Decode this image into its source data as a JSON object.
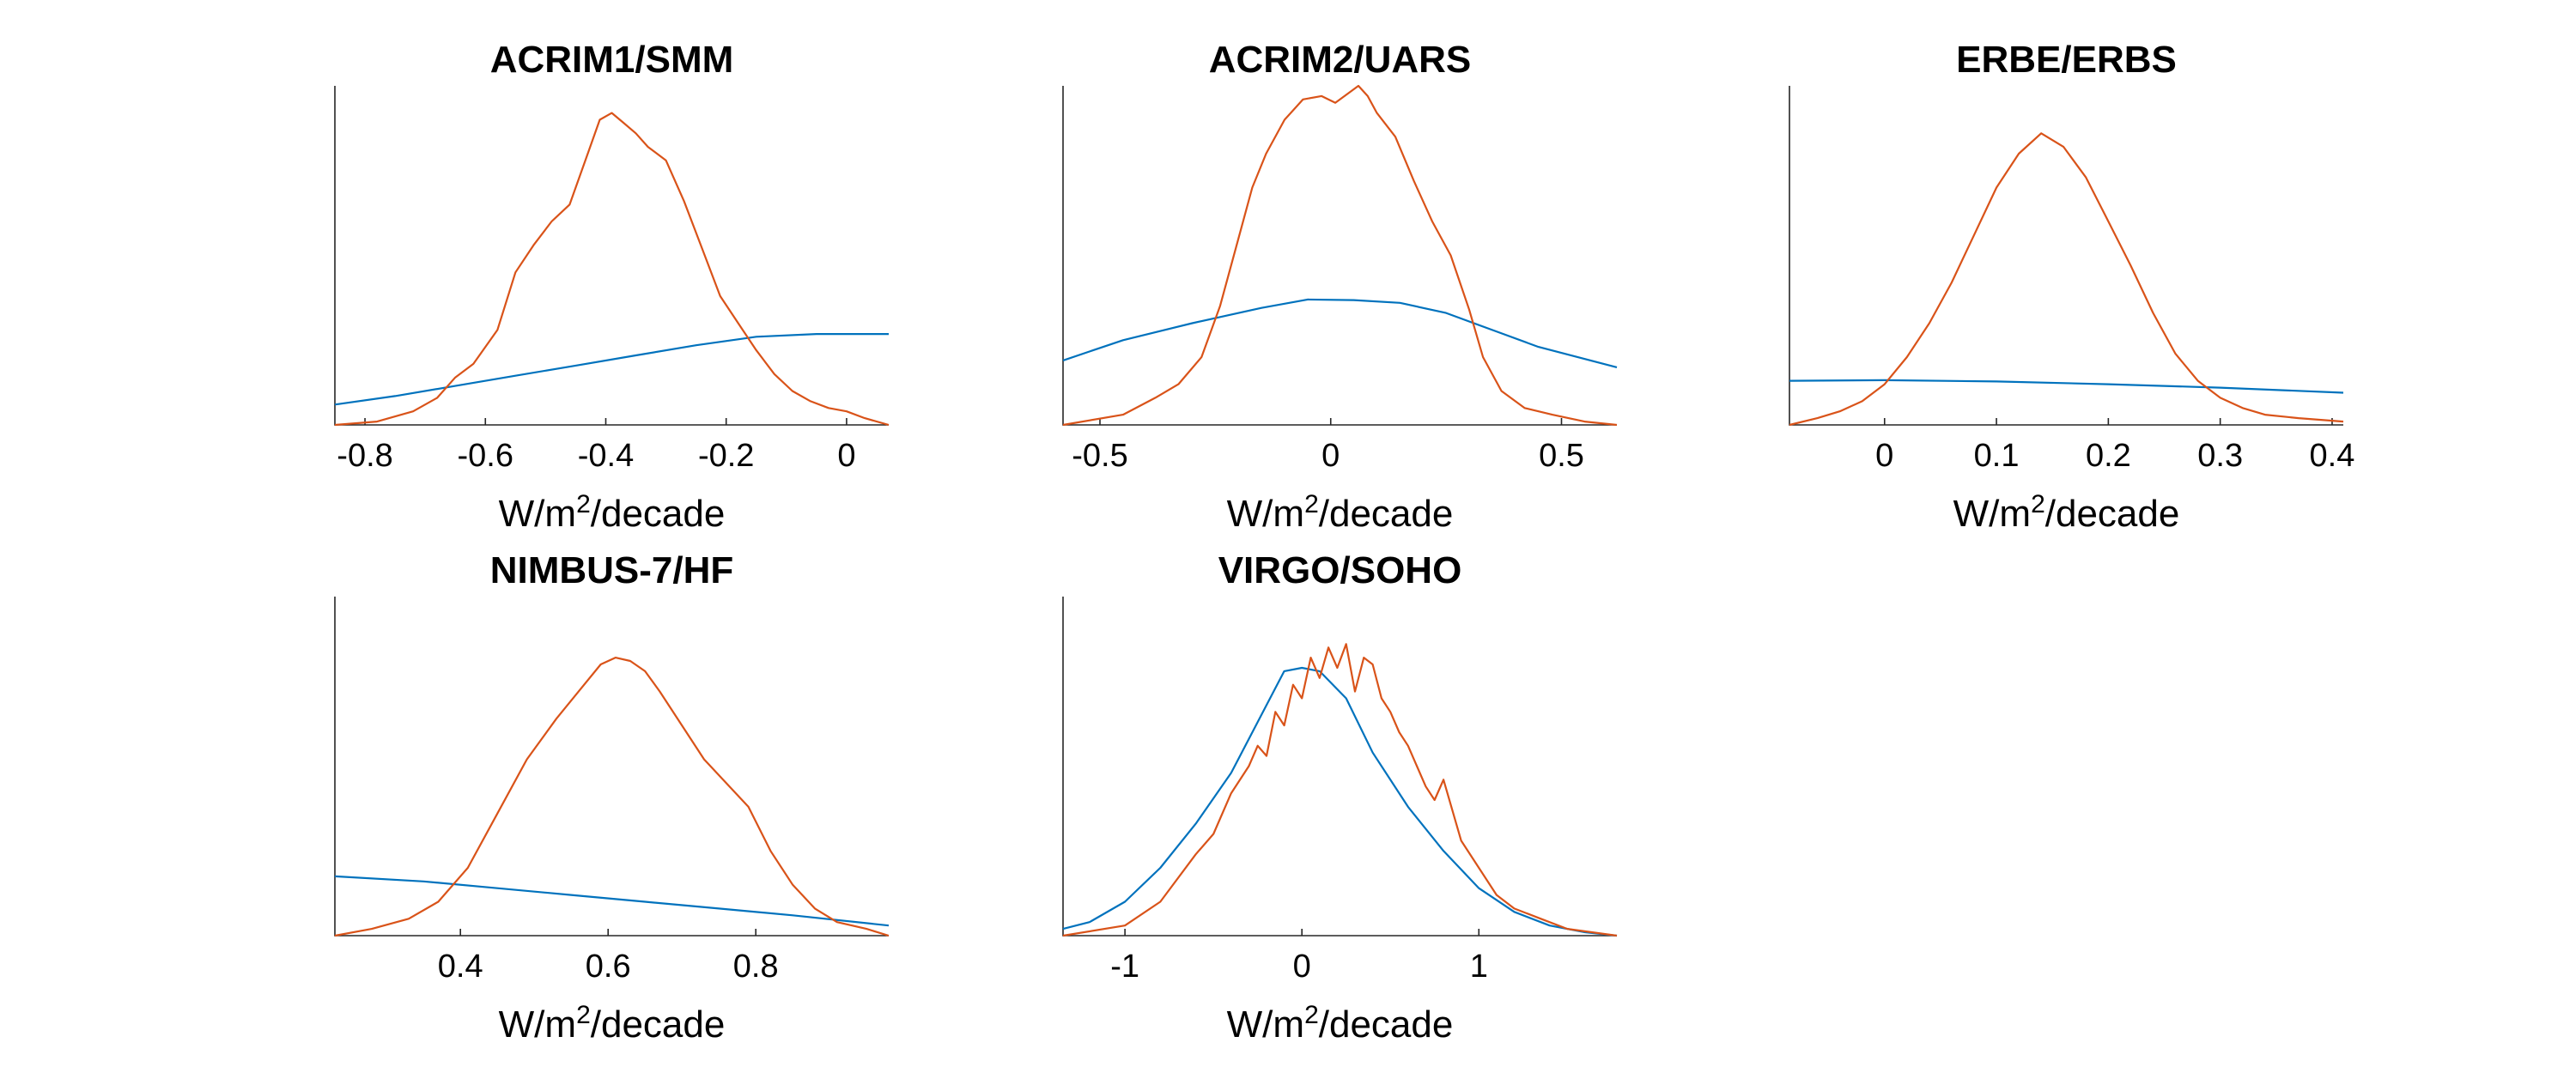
{
  "colors": {
    "prior": "#0072BD",
    "posterior": "#D95319",
    "axis": "#262626"
  },
  "chart_data": [
    {
      "type": "line",
      "title": "ACRIM1/SMM",
      "xlabel": {
        "base": "W/m",
        "sup": "2",
        "tail": "/decade"
      },
      "xlim": [
        -0.85,
        0.07
      ],
      "ylim": [
        0,
        1
      ],
      "xticks": [
        -0.8,
        -0.6,
        -0.4,
        -0.2,
        0
      ],
      "xtick_labels": [
        "-0.8",
        "-0.6",
        "-0.4",
        "-0.2",
        "0"
      ],
      "series": [
        {
          "role": "prior",
          "x": [
            -0.85,
            -0.75,
            -0.65,
            -0.55,
            -0.45,
            -0.35,
            -0.25,
            -0.15,
            -0.05,
            0.07
          ],
          "y": [
            0.06,
            0.085,
            0.115,
            0.145,
            0.175,
            0.205,
            0.235,
            0.26,
            0.268,
            0.268
          ]
        },
        {
          "role": "posterior",
          "x": [
            -0.85,
            -0.78,
            -0.72,
            -0.68,
            -0.65,
            -0.62,
            -0.58,
            -0.55,
            -0.52,
            -0.49,
            -0.46,
            -0.43,
            -0.41,
            -0.39,
            -0.37,
            -0.35,
            -0.33,
            -0.3,
            -0.27,
            -0.24,
            -0.21,
            -0.18,
            -0.15,
            -0.12,
            -0.09,
            -0.06,
            -0.03,
            0.0,
            0.03,
            0.07
          ],
          "y": [
            0.0,
            0.01,
            0.04,
            0.08,
            0.14,
            0.18,
            0.28,
            0.45,
            0.53,
            0.6,
            0.65,
            0.8,
            0.9,
            0.92,
            0.89,
            0.86,
            0.82,
            0.78,
            0.66,
            0.52,
            0.38,
            0.3,
            0.22,
            0.15,
            0.1,
            0.07,
            0.05,
            0.04,
            0.02,
            0.0
          ]
        }
      ]
    },
    {
      "type": "line",
      "title": "ACRIM2/UARS",
      "xlabel": {
        "base": "W/m",
        "sup": "2",
        "tail": "/decade"
      },
      "xlim": [
        -0.58,
        0.62
      ],
      "ylim": [
        0,
        1
      ],
      "xticks": [
        -0.5,
        0,
        0.5
      ],
      "xtick_labels": [
        "-0.5",
        "0",
        "0.5"
      ],
      "series": [
        {
          "role": "prior",
          "x": [
            -0.58,
            -0.45,
            -0.3,
            -0.15,
            -0.05,
            0.05,
            0.15,
            0.25,
            0.35,
            0.45,
            0.62
          ],
          "y": [
            0.19,
            0.25,
            0.3,
            0.345,
            0.37,
            0.368,
            0.36,
            0.33,
            0.28,
            0.23,
            0.17
          ]
        },
        {
          "role": "posterior",
          "x": [
            -0.58,
            -0.45,
            -0.38,
            -0.33,
            -0.28,
            -0.24,
            -0.2,
            -0.17,
            -0.14,
            -0.1,
            -0.06,
            -0.02,
            0.01,
            0.04,
            0.06,
            0.08,
            0.1,
            0.14,
            0.18,
            0.22,
            0.26,
            0.3,
            0.33,
            0.37,
            0.42,
            0.48,
            0.55,
            0.62
          ],
          "y": [
            0.0,
            0.03,
            0.08,
            0.12,
            0.2,
            0.35,
            0.55,
            0.7,
            0.8,
            0.9,
            0.96,
            0.97,
            0.95,
            0.98,
            1.0,
            0.97,
            0.92,
            0.85,
            0.72,
            0.6,
            0.5,
            0.34,
            0.2,
            0.1,
            0.05,
            0.03,
            0.01,
            0.0
          ]
        }
      ]
    },
    {
      "type": "line",
      "title": "ERBE/ERBS",
      "xlabel": {
        "base": "W/m",
        "sup": "2",
        "tail": "/decade"
      },
      "xlim": [
        -0.085,
        0.41
      ],
      "ylim": [
        0,
        1
      ],
      "xticks": [
        0,
        0.1,
        0.2,
        0.3,
        0.4
      ],
      "xtick_labels": [
        "0",
        "0.1",
        "0.2",
        "0.3",
        "0.4"
      ],
      "series": [
        {
          "role": "prior",
          "x": [
            -0.085,
            0.0,
            0.1,
            0.2,
            0.3,
            0.41
          ],
          "y": [
            0.13,
            0.132,
            0.128,
            0.12,
            0.11,
            0.095
          ]
        },
        {
          "role": "posterior",
          "x": [
            -0.085,
            -0.06,
            -0.04,
            -0.02,
            0.0,
            0.02,
            0.04,
            0.06,
            0.08,
            0.1,
            0.12,
            0.14,
            0.15,
            0.16,
            0.18,
            0.2,
            0.22,
            0.24,
            0.26,
            0.28,
            0.3,
            0.32,
            0.34,
            0.37,
            0.41
          ],
          "y": [
            0.0,
            0.02,
            0.04,
            0.07,
            0.12,
            0.2,
            0.3,
            0.42,
            0.56,
            0.7,
            0.8,
            0.86,
            0.84,
            0.82,
            0.73,
            0.6,
            0.47,
            0.33,
            0.21,
            0.13,
            0.08,
            0.05,
            0.03,
            0.02,
            0.01
          ]
        }
      ]
    },
    {
      "type": "line",
      "title": "NIMBUS-7/HF",
      "xlabel": {
        "base": "W/m",
        "sup": "2",
        "tail": "/decade"
      },
      "xlim": [
        0.23,
        0.98
      ],
      "ylim": [
        0,
        1
      ],
      "xticks": [
        0.4,
        0.6,
        0.8
      ],
      "xtick_labels": [
        "0.4",
        "0.6",
        "0.8"
      ],
      "series": [
        {
          "role": "prior",
          "x": [
            0.23,
            0.35,
            0.45,
            0.55,
            0.65,
            0.75,
            0.85,
            0.98
          ],
          "y": [
            0.175,
            0.16,
            0.14,
            0.12,
            0.1,
            0.08,
            0.06,
            0.03
          ]
        },
        {
          "role": "posterior",
          "x": [
            0.23,
            0.28,
            0.33,
            0.37,
            0.41,
            0.45,
            0.49,
            0.53,
            0.56,
            0.59,
            0.61,
            0.63,
            0.65,
            0.67,
            0.7,
            0.73,
            0.76,
            0.79,
            0.82,
            0.85,
            0.88,
            0.91,
            0.95,
            0.98
          ],
          "y": [
            0.0,
            0.02,
            0.05,
            0.1,
            0.2,
            0.36,
            0.52,
            0.64,
            0.72,
            0.8,
            0.82,
            0.81,
            0.78,
            0.72,
            0.62,
            0.52,
            0.45,
            0.38,
            0.25,
            0.15,
            0.08,
            0.04,
            0.02,
            0.0
          ]
        }
      ]
    },
    {
      "type": "line",
      "title": "VIRGO/SOHO",
      "xlabel": {
        "base": "W/m",
        "sup": "2",
        "tail": "/decade"
      },
      "xlim": [
        -1.35,
        1.78
      ],
      "ylim": [
        0,
        1
      ],
      "xticks": [
        -1,
        0,
        1
      ],
      "xtick_labels": [
        "-1",
        "0",
        "1"
      ],
      "series": [
        {
          "role": "prior",
          "x": [
            -1.35,
            -1.2,
            -1.0,
            -0.8,
            -0.6,
            -0.4,
            -0.25,
            -0.1,
            0.0,
            0.1,
            0.25,
            0.4,
            0.6,
            0.8,
            1.0,
            1.2,
            1.4,
            1.6,
            1.78
          ],
          "y": [
            0.02,
            0.04,
            0.1,
            0.2,
            0.33,
            0.48,
            0.63,
            0.78,
            0.79,
            0.78,
            0.7,
            0.54,
            0.38,
            0.25,
            0.14,
            0.07,
            0.03,
            0.01,
            0.0
          ]
        },
        {
          "role": "posterior",
          "x": [
            -1.35,
            -1.0,
            -0.8,
            -0.6,
            -0.5,
            -0.4,
            -0.3,
            -0.25,
            -0.2,
            -0.15,
            -0.1,
            -0.05,
            0.0,
            0.05,
            0.1,
            0.15,
            0.2,
            0.25,
            0.3,
            0.35,
            0.4,
            0.45,
            0.5,
            0.55,
            0.6,
            0.65,
            0.7,
            0.75,
            0.8,
            0.9,
            1.0,
            1.1,
            1.2,
            1.35,
            1.5,
            1.78
          ],
          "y": [
            0.0,
            0.03,
            0.1,
            0.24,
            0.3,
            0.42,
            0.5,
            0.56,
            0.53,
            0.66,
            0.62,
            0.74,
            0.7,
            0.82,
            0.76,
            0.85,
            0.79,
            0.86,
            0.72,
            0.82,
            0.8,
            0.7,
            0.66,
            0.6,
            0.56,
            0.5,
            0.44,
            0.4,
            0.46,
            0.28,
            0.2,
            0.12,
            0.08,
            0.05,
            0.02,
            0.0
          ]
        }
      ]
    }
  ]
}
